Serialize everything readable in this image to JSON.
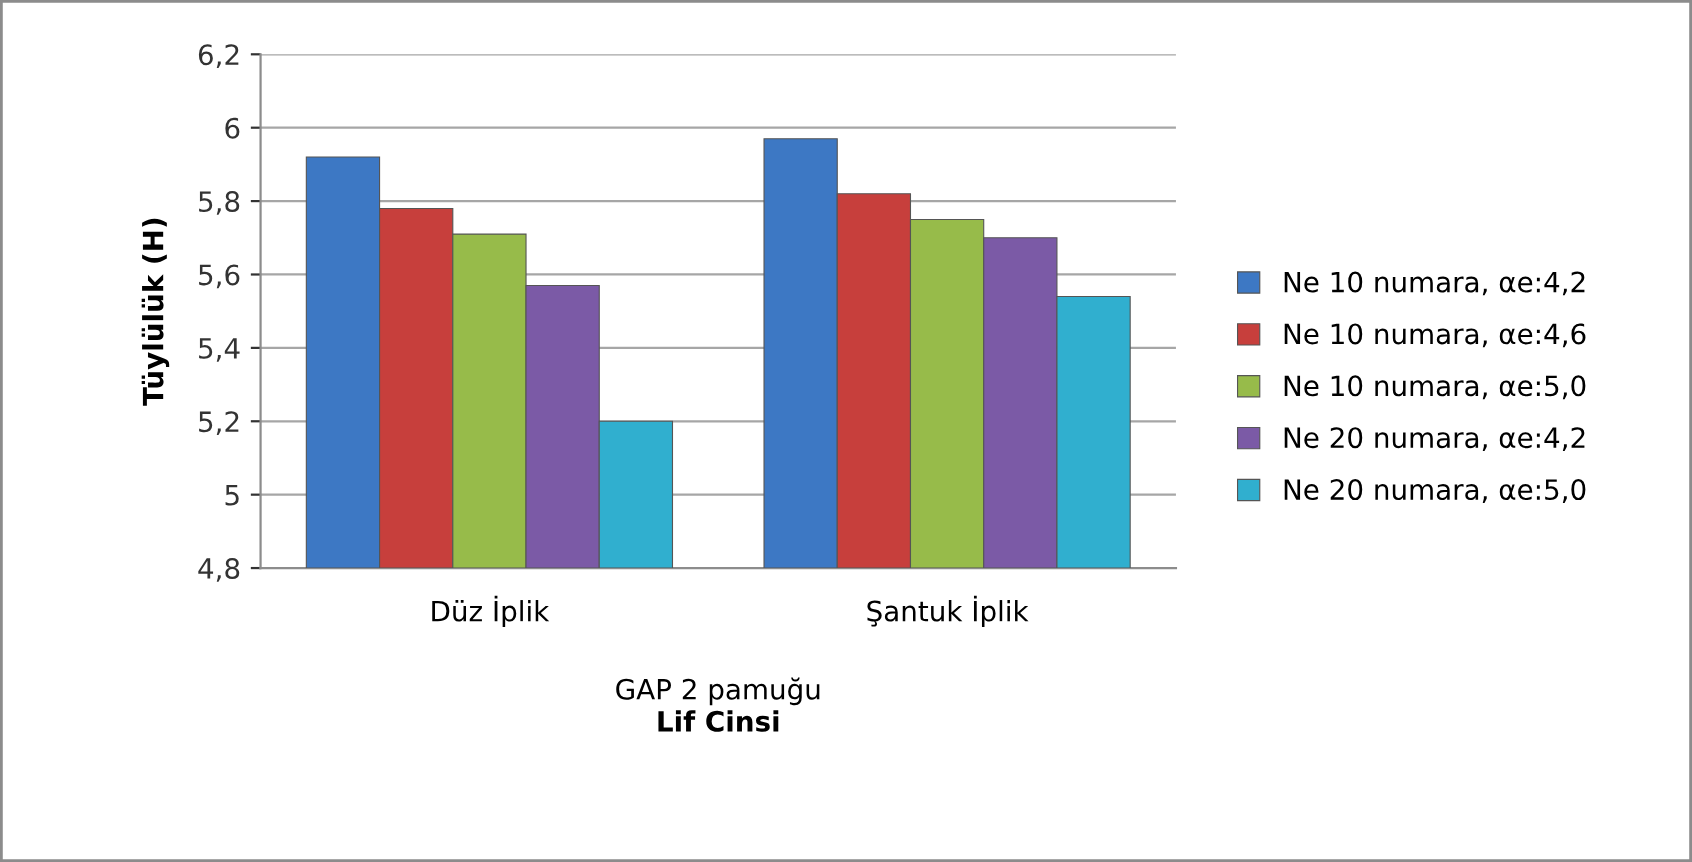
{
  "chart_data": {
    "type": "bar",
    "xlabel": "Lif Cinsi",
    "ylabel": "Tüylülük (H)",
    "categories": [
      "Düz İplik",
      "Şantuk İplik"
    ],
    "series": [
      {
        "name": "Ne 10 numara, αe:4,2",
        "color": "#3d78c4",
        "values": [
          5.92,
          5.97
        ]
      },
      {
        "name": "Ne 10 numara, αe:4,6",
        "color": "#c73f3c",
        "values": [
          5.78,
          5.82
        ]
      },
      {
        "name": "Ne 10 numara, αe:5,0",
        "color": "#97bb4a",
        "values": [
          5.71,
          5.75
        ]
      },
      {
        "name": "Ne 20 numara, αe:4,2",
        "color": "#7b5aa6",
        "values": [
          5.57,
          5.7
        ]
      },
      {
        "name": "Ne 20 numara, αe:5,0",
        "color": "#30afcf",
        "values": [
          5.2,
          5.54
        ]
      }
    ],
    "ylim": [
      4.8,
      6.2
    ],
    "yticks": [
      {
        "value": 4.8,
        "label": "4,8"
      },
      5,
      {
        "value": 5.2,
        "label": "5,2"
      },
      {
        "value": 5.4,
        "label": "5,4"
      },
      {
        "value": 5.6,
        "label": "5,6"
      },
      {
        "value": 5.8,
        "label": "5,8"
      },
      6,
      {
        "value": 6.2,
        "label": "6,2"
      }
    ],
    "grid": "y",
    "legend": "right",
    "annotations": [
      "GAP 2 pamuğu"
    ]
  }
}
